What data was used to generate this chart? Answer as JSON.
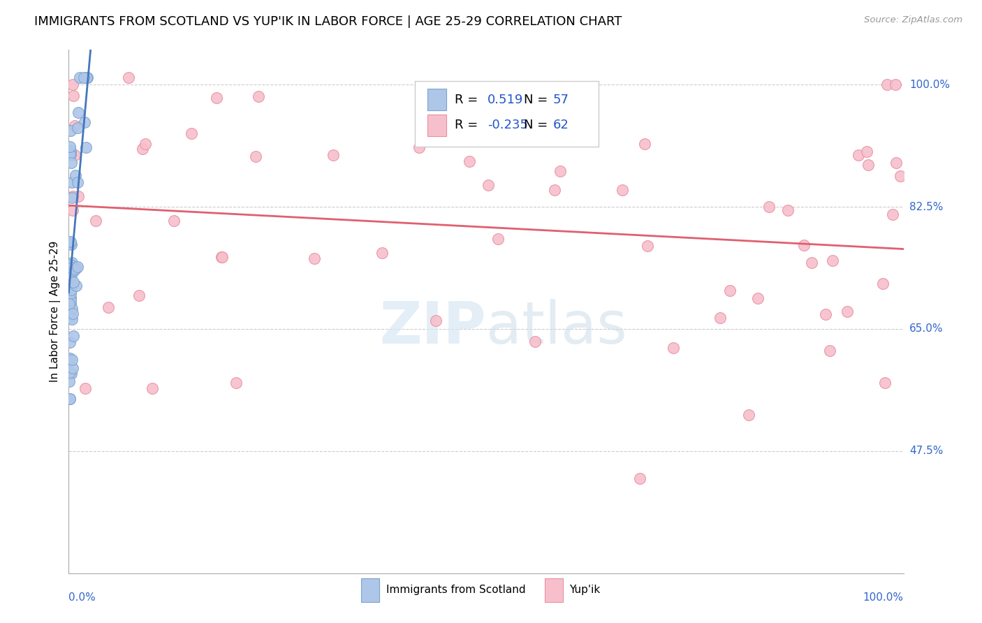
{
  "title": "IMMIGRANTS FROM SCOTLAND VS YUP'IK IN LABOR FORCE | AGE 25-29 CORRELATION CHART",
  "source": "Source: ZipAtlas.com",
  "ylabel": "In Labor Force | Age 25-29",
  "ytick_labels": [
    "100.0%",
    "82.5%",
    "65.0%",
    "47.5%"
  ],
  "ytick_values": [
    1.0,
    0.825,
    0.65,
    0.475
  ],
  "xlim": [
    0.0,
    1.0
  ],
  "ylim": [
    0.3,
    1.05
  ],
  "scotland_R": 0.519,
  "scotland_N": 57,
  "yupik_R": -0.235,
  "yupik_N": 62,
  "scotland_color": "#aec6e8",
  "scotland_edge": "#7ba3d0",
  "scotland_line_color": "#4477bb",
  "yupik_color": "#f7bfcc",
  "yupik_edge": "#e8909f",
  "yupik_line_color": "#e06070",
  "legend_color": "#2255cc",
  "background_color": "#ffffff",
  "grid_color": "#cccccc",
  "title_fontsize": 13,
  "axis_label_fontsize": 11,
  "right_label_color": "#3366cc"
}
